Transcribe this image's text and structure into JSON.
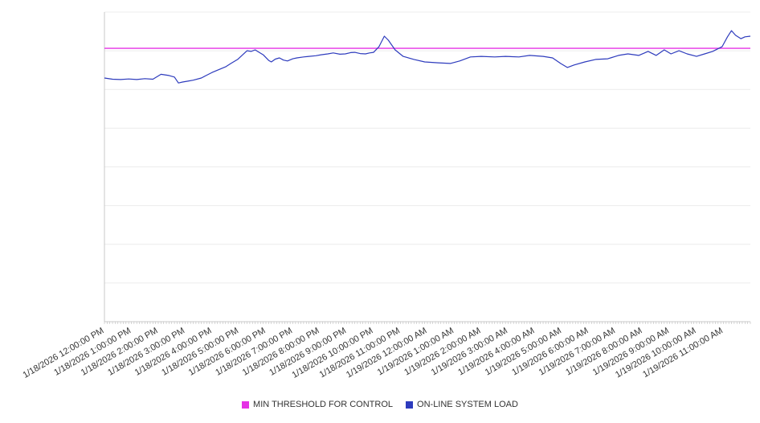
{
  "chart_data": {
    "type": "line",
    "title": "",
    "xlabel": "",
    "ylabel": "",
    "grid": true,
    "legend_position": "bottom",
    "xlim": [
      0,
      24
    ],
    "ylim": [
      0,
      100
    ],
    "minor_tick_step": 0.1,
    "x_note": "hours elapsed since first tick label",
    "x_tick_hours": [
      0,
      1,
      2,
      3,
      4,
      5,
      6,
      7,
      8,
      9,
      10,
      11,
      12,
      13,
      14,
      15,
      16,
      17,
      18,
      19,
      20,
      21,
      22,
      23
    ],
    "x_tick_labels": [
      "1/18/2026 12:00:00 PM",
      "1/18/2026 1:00:00 PM",
      "1/18/2026 2:00:00 PM",
      "1/18/2026 3:00:00 PM",
      "1/18/2026 4:00:00 PM",
      "1/18/2026 5:00:00 PM",
      "1/18/2026 6:00:00 PM",
      "1/18/2026 7:00:00 PM",
      "1/18/2026 8:00:00 PM",
      "1/18/2026 9:00:00 PM",
      "1/18/2026 10:00:00 PM",
      "1/18/2026 11:00:00 PM",
      "1/19/2026 12:00:00 AM",
      "1/19/2026 1:00:00 AM",
      "1/19/2026 2:00:00 AM",
      "1/19/2026 3:00:00 AM",
      "1/19/2026 4:00:00 AM",
      "1/19/2026 5:00:00 AM",
      "1/19/2026 6:00:00 AM",
      "1/19/2026 7:00:00 AM",
      "1/19/2026 8:00:00 AM",
      "1/19/2026 9:00:00 AM",
      "1/19/2026 10:00:00 AM",
      "1/19/2026 11:00:00 AM"
    ],
    "series": [
      {
        "name": "MIN THRESHOLD FOR CONTROL",
        "color": "#e531e5",
        "value": 88.3
      },
      {
        "name": "ON-LINE SYSTEM LOAD",
        "color": "#2d3bbd",
        "x": [
          0,
          0.3,
          0.6,
          0.9,
          1.2,
          1.5,
          1.8,
          2.1,
          2.4,
          2.6,
          2.75,
          2.9,
          3.1,
          3.3,
          3.6,
          3.8,
          4.0,
          4.25,
          4.5,
          4.7,
          4.95,
          5.15,
          5.3,
          5.45,
          5.6,
          5.75,
          5.9,
          6.1,
          6.2,
          6.35,
          6.5,
          6.65,
          6.8,
          7.0,
          7.15,
          7.4,
          7.6,
          7.85,
          8.05,
          8.3,
          8.5,
          8.75,
          8.95,
          9.15,
          9.3,
          9.5,
          9.7,
          9.85,
          10.0,
          10.2,
          10.4,
          10.55,
          10.8,
          11.1,
          11.5,
          11.9,
          12.4,
          12.85,
          13.2,
          13.6,
          14.0,
          14.5,
          14.9,
          15.4,
          15.8,
          16.3,
          16.65,
          16.95,
          17.2,
          17.45,
          17.85,
          18.25,
          18.7,
          19.1,
          19.45,
          19.85,
          20.2,
          20.5,
          20.8,
          21.05,
          21.35,
          21.65,
          22.0,
          22.3,
          22.6,
          22.95,
          23.15,
          23.3,
          23.45,
          23.65,
          23.8,
          24.0
        ],
        "y": [
          78.7,
          78.3,
          78.2,
          78.4,
          78.2,
          78.5,
          78.3,
          79.9,
          79.5,
          79.0,
          77.1,
          77.4,
          77.7,
          78.0,
          78.7,
          79.6,
          80.5,
          81.4,
          82.3,
          83.4,
          84.7,
          86.3,
          87.5,
          87.3,
          87.8,
          87.0,
          86.2,
          84.4,
          83.9,
          84.8,
          85.2,
          84.5,
          84.2,
          84.9,
          85.2,
          85.5,
          85.7,
          85.9,
          86.2,
          86.5,
          86.8,
          86.4,
          86.5,
          86.9,
          87.0,
          86.6,
          86.5,
          86.8,
          87.0,
          88.8,
          92.2,
          90.9,
          87.8,
          85.7,
          84.7,
          83.9,
          83.6,
          83.4,
          84.2,
          85.5,
          85.7,
          85.5,
          85.7,
          85.5,
          86.0,
          85.7,
          85.2,
          83.4,
          82.1,
          82.9,
          83.9,
          84.7,
          84.9,
          86.0,
          86.5,
          86.0,
          87.3,
          86.0,
          87.8,
          86.5,
          87.5,
          86.5,
          85.7,
          86.5,
          87.3,
          88.8,
          92.0,
          94.0,
          92.5,
          91.4,
          92.0,
          92.2
        ]
      }
    ]
  }
}
